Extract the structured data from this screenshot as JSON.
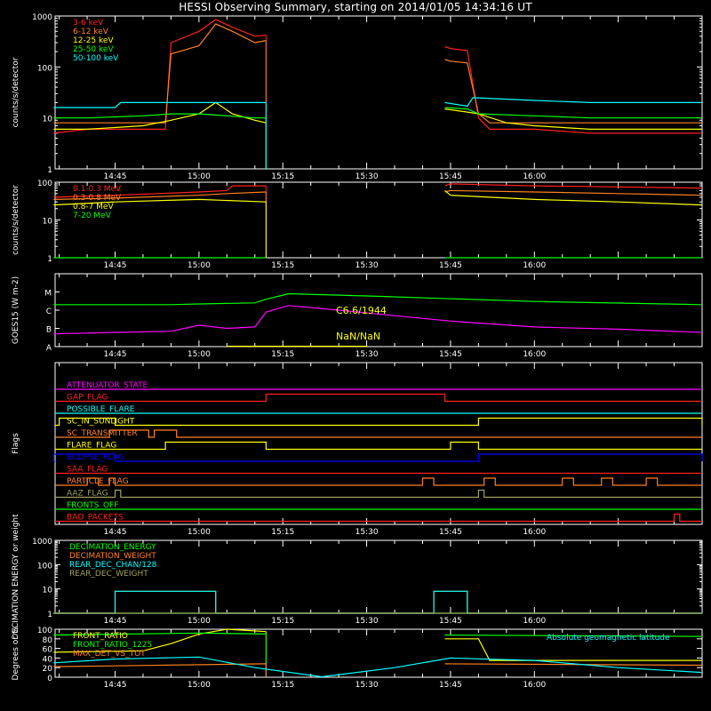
{
  "title": "HESSI Observing Summary, starting on 2014/01/05 14:34:16 UT",
  "colors": {
    "background": "#000000",
    "axis": "#ffffff",
    "red": "#ff2020",
    "orange": "#ff8020",
    "yellow": "#ffff00",
    "green": "#00ff00",
    "cyan": "#00ffff",
    "magenta": "#ff00ff",
    "blue": "#0000ff",
    "olive": "#a0a060"
  },
  "time_axis": {
    "start": "14:34:16",
    "end": "16:30",
    "ticks": [
      "14:45",
      "15:00",
      "15:15",
      "15:30",
      "15:45",
      "16:00"
    ],
    "minor_tick_minutes": 5
  },
  "chart_data": [
    {
      "type": "line",
      "panel": "count-rates",
      "ylabel": "counts/s/detector",
      "yscale": "log",
      "ylim": [
        1,
        1000
      ],
      "yticks": [
        "1",
        "10",
        "100",
        "1000"
      ],
      "data_gaps": [
        [
          "15:12",
          "15:44"
        ]
      ],
      "series": [
        {
          "name": "3-6 keV",
          "color": "red",
          "x": [
            "14:34",
            "14:40",
            "14:50",
            "14:54",
            "14:55",
            "15:00",
            "15:03",
            "15:06",
            "15:10",
            "15:12",
            "15:44",
            "15:45",
            "15:48",
            "15:50",
            "15:52",
            "16:00",
            "16:10",
            "16:20",
            "16:30"
          ],
          "y": [
            5,
            6,
            6,
            6,
            300,
            500,
            850,
            600,
            400,
            420,
            250,
            230,
            210,
            10,
            6,
            6,
            5,
            5,
            5
          ]
        },
        {
          "name": "6-12 keV",
          "color": "orange",
          "x": [
            "14:34",
            "14:40",
            "14:50",
            "14:54",
            "14:55",
            "15:00",
            "15:03",
            "15:06",
            "15:10",
            "15:12",
            "15:44",
            "15:45",
            "15:48",
            "15:50",
            "15:52",
            "16:00",
            "16:10",
            "16:20",
            "16:30"
          ],
          "y": [
            8,
            8,
            8,
            8,
            180,
            260,
            700,
            500,
            300,
            330,
            140,
            130,
            120,
            12,
            8,
            8,
            8,
            8,
            8
          ]
        },
        {
          "name": "12-25 keV",
          "color": "yellow",
          "x": [
            "14:34",
            "14:40",
            "14:50",
            "14:55",
            "15:00",
            "15:03",
            "15:06",
            "15:10",
            "15:12",
            "15:44",
            "15:48",
            "15:50",
            "15:55",
            "16:00",
            "16:10",
            "16:20",
            "16:30"
          ],
          "y": [
            6,
            6,
            7,
            9,
            12,
            20,
            12,
            9,
            8,
            15,
            13,
            12,
            8,
            7,
            6,
            6,
            6
          ]
        },
        {
          "name": "25-50 keV",
          "color": "green",
          "x": [
            "14:34",
            "14:40",
            "14:50",
            "14:55",
            "15:00",
            "15:05",
            "15:10",
            "15:12",
            "15:44",
            "15:48",
            "15:50",
            "16:00",
            "16:10",
            "16:20",
            "16:30"
          ],
          "y": [
            10,
            10,
            11,
            12,
            12,
            11,
            10,
            10,
            16,
            15,
            12,
            11,
            10,
            10,
            10
          ]
        },
        {
          "name": "50-100 keV",
          "color": "cyan",
          "x": [
            "14:34",
            "14:45",
            "14:46",
            "15:00",
            "15:05",
            "15:12",
            "15:44",
            "15:48",
            "15:49",
            "16:00",
            "16:10",
            "16:20",
            "16:30"
          ],
          "y": [
            16,
            16,
            20,
            20,
            20,
            20,
            20,
            17,
            25,
            22,
            20,
            20,
            20
          ]
        }
      ]
    },
    {
      "type": "line",
      "panel": "gamma-rates",
      "ylabel": "counts/s/detector",
      "yscale": "log",
      "ylim": [
        1,
        100
      ],
      "yticks": [
        "1",
        "10",
        "100"
      ],
      "data_gaps": [
        [
          "15:12",
          "15:44"
        ]
      ],
      "series": [
        {
          "name": "0.1-0.3 MeV",
          "color": "red",
          "x": [
            "14:34",
            "14:45",
            "15:00",
            "15:05",
            "15:06",
            "15:12",
            "15:44",
            "15:45",
            "16:00",
            "16:15",
            "16:30"
          ],
          "y": [
            40,
            45,
            55,
            60,
            80,
            80,
            80,
            90,
            80,
            75,
            70
          ]
        },
        {
          "name": "0.3-0.8 MeV",
          "color": "orange",
          "x": [
            "14:34",
            "14:45",
            "15:00",
            "15:05",
            "15:12",
            "15:44",
            "15:45",
            "16:00",
            "16:15",
            "16:30"
          ],
          "y": [
            35,
            38,
            45,
            50,
            55,
            55,
            60,
            55,
            50,
            45
          ]
        },
        {
          "name": "0.8-7 MeV",
          "color": "yellow",
          "x": [
            "14:34",
            "14:45",
            "15:00",
            "15:12",
            "15:44",
            "15:45",
            "16:00",
            "16:15",
            "16:30"
          ],
          "y": [
            25,
            30,
            35,
            30,
            60,
            45,
            35,
            30,
            25
          ]
        },
        {
          "name": "7-20 MeV",
          "color": "green",
          "x": [
            "14:34",
            "15:12",
            "15:44",
            "16:30"
          ],
          "y": [
            1,
            1,
            1,
            1
          ]
        }
      ]
    },
    {
      "type": "line",
      "panel": "goes",
      "ylabel": "GOES15 (W m-2)",
      "yscale": "log",
      "ylim": [
        1e-08,
        0.0001
      ],
      "yticks": [
        "A",
        "B",
        "C",
        "M"
      ],
      "annotations": [
        "C6.6/1944",
        "NaN/NaN"
      ],
      "series": [
        {
          "name": "GOES long",
          "color": "magenta",
          "x": [
            "14:34",
            "14:45",
            "14:55",
            "15:00",
            "15:05",
            "15:10",
            "15:12",
            "15:16",
            "15:25",
            "15:35",
            "15:45",
            "16:00",
            "16:15",
            "16:30"
          ],
          "y": [
            5e-08,
            6e-08,
            7e-08,
            1.5e-07,
            1e-07,
            1.2e-07,
            8e-07,
            1.8e-06,
            1e-06,
            5e-07,
            2.5e-07,
            1.2e-07,
            9e-08,
            6e-08
          ]
        },
        {
          "name": "GOES short",
          "color": "green",
          "x": [
            "14:34",
            "14:55",
            "15:00",
            "15:10",
            "15:12",
            "15:16",
            "15:30",
            "16:00",
            "16:30"
          ],
          "y": [
            2e-06,
            2e-06,
            2.2e-06,
            2.5e-06,
            4e-06,
            8e-06,
            6e-06,
            3e-06,
            2e-06
          ]
        },
        {
          "name": "GOES flag",
          "color": "yellow",
          "x": [
            "15:05",
            "15:30"
          ],
          "y": [
            1.05e-08,
            1.05e-08
          ]
        }
      ]
    },
    {
      "type": "line",
      "panel": "flags",
      "ylabel": "Flags",
      "flags": [
        {
          "name": "ATTENUATOR_STATE",
          "color": "magenta",
          "steps": []
        },
        {
          "name": "GAP_FLAG",
          "color": "red",
          "steps": [
            [
              "15:12",
              "15:44"
            ]
          ]
        },
        {
          "name": "POSSIBLE_FLARE",
          "color": "cyan",
          "steps": []
        },
        {
          "name": "SC_IN_SUNLIGHT",
          "color": "yellow",
          "steps": [
            [
              "14:35",
              "14:45"
            ],
            [
              "15:50",
              "16:30"
            ]
          ]
        },
        {
          "name": "SC_TRANSMITTER",
          "color": "orange",
          "steps": [
            [
              "14:44",
              "14:51"
            ],
            [
              "14:52",
              "14:56"
            ]
          ]
        },
        {
          "name": "FLARE_FLAG",
          "color": "yellow",
          "steps": [
            [
              "14:54",
              "15:12"
            ],
            [
              "15:45",
              "15:50"
            ]
          ]
        },
        {
          "name": "ECLIPSE_FLAG",
          "color": "blue",
          "steps": [
            [
              "14:34",
              "14:45"
            ],
            [
              "15:50",
              "16:30"
            ]
          ]
        },
        {
          "name": "SAA_FLAG",
          "color": "red",
          "steps": []
        },
        {
          "name": "PARTICLE_FLAG",
          "color": "orange",
          "steps": [
            [
              "14:40",
              "14:42"
            ],
            [
              "14:44",
              "14:45"
            ],
            [
              "15:40",
              "15:42"
            ],
            [
              "15:51",
              "15:53"
            ],
            [
              "16:05",
              "16:07"
            ],
            [
              "16:12",
              "16:14"
            ],
            [
              "16:20",
              "16:22"
            ]
          ]
        },
        {
          "name": "AAZ_FLAG",
          "color": "olive",
          "steps": [
            [
              "14:45",
              "14:46"
            ],
            [
              "15:50",
              "15:51"
            ]
          ]
        },
        {
          "name": "FRONTS_OFF",
          "color": "green",
          "steps": []
        },
        {
          "name": "BAD_PACKETS",
          "color": "red",
          "steps": [
            [
              "16:25",
              "16:26"
            ]
          ]
        }
      ]
    },
    {
      "type": "line",
      "panel": "decimation",
      "ylabel": "DECIMATION ENERGY or weight",
      "yscale": "log",
      "ylim": [
        1,
        1000
      ],
      "yticks": [
        "1",
        "10",
        "100",
        "1000"
      ],
      "series": [
        {
          "name": "DECIMATION_ENERGY",
          "color": "green",
          "x": [
            "14:34",
            "16:30"
          ],
          "y": [
            1,
            1
          ]
        },
        {
          "name": "DECIMATION_WEIGHT",
          "color": "orange",
          "x": [
            "14:34",
            "14:45",
            "14:45",
            "15:03",
            "15:03",
            "15:42",
            "15:42",
            "15:48",
            "15:48",
            "16:30"
          ],
          "y": [
            1,
            1,
            8,
            8,
            1,
            1,
            8,
            8,
            1,
            1
          ]
        },
        {
          "name": "REAR_DEC_CHAN/128",
          "color": "cyan",
          "x": [
            "14:34",
            "14:45",
            "14:45",
            "15:03",
            "15:03",
            "15:42",
            "15:42",
            "15:48",
            "15:48",
            "16:30"
          ],
          "y": [
            1,
            1,
            8,
            8,
            1,
            1,
            8,
            8,
            1,
            1
          ]
        },
        {
          "name": "REAR_DEC_WEIGHT",
          "color": "olive",
          "x": [
            "14:34",
            "16:30"
          ],
          "y": [
            1,
            1
          ]
        }
      ]
    },
    {
      "type": "line",
      "panel": "ratios",
      "ylabel": "Degrees or %",
      "ylim": [
        0,
        100
      ],
      "yticks": [
        "0",
        "20",
        "40",
        "60",
        "80",
        "100"
      ],
      "data_gaps": [
        [
          "15:12",
          "15:44"
        ]
      ],
      "series": [
        {
          "name": "FRONT_RATIO",
          "color": "yellow",
          "x": [
            "14:34",
            "14:50",
            "14:55",
            "15:00",
            "15:05",
            "15:12",
            "15:44",
            "15:50",
            "15:52",
            "16:30"
          ],
          "y": [
            52,
            55,
            70,
            90,
            100,
            95,
            80,
            80,
            35,
            35
          ]
        },
        {
          "name": "FRONT_RATIO_1225",
          "color": "green",
          "x": [
            "14:34",
            "15:00",
            "15:12",
            "15:44",
            "16:30"
          ],
          "y": [
            88,
            92,
            90,
            88,
            85
          ]
        },
        {
          "name": "MAX_DET_VS_TOT",
          "color": "orange",
          "x": [
            "14:34",
            "15:12",
            "15:44",
            "16:30"
          ],
          "y": [
            22,
            28,
            28,
            25
          ]
        },
        {
          "name": "Absolute geomagnetic latitude",
          "color": "cyan",
          "x": [
            "14:34",
            "14:45",
            "15:00",
            "15:10",
            "15:22",
            "15:35",
            "15:45",
            "16:00",
            "16:15",
            "16:30"
          ],
          "y": [
            30,
            38,
            42,
            20,
            1,
            20,
            40,
            35,
            20,
            10
          ]
        }
      ]
    }
  ]
}
